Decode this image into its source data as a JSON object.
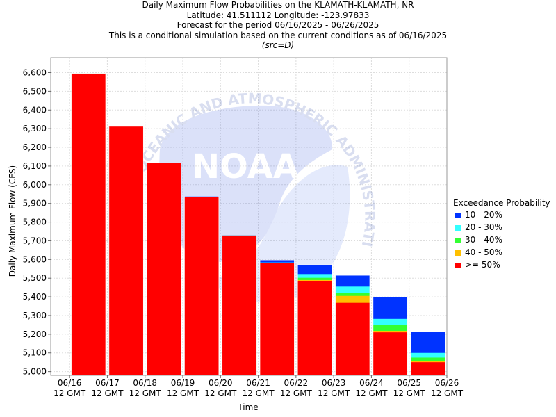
{
  "header": {
    "title": "Daily Maximum Flow Probabilities on the KLAMATH-KLAMATH, NR",
    "location": "Latitude: 41.511112 Longitude: -123.97833",
    "period": "Forecast for the period 06/16/2025 - 06/26/2025",
    "condition": "This is a conditional simulation based on the current conditions as of 06/16/2025",
    "source": "(src=D)"
  },
  "watermark": {
    "text": "NOAA",
    "arc_text": "OCEANIC AND ATMOSPHERIC ADMINISTRATION",
    "icon": "noaa-logo-watermark"
  },
  "legend": {
    "title": "Exceedance Probability",
    "items": [
      {
        "label": "10 - 20%",
        "color": "#0033ff"
      },
      {
        "label": "20 - 30%",
        "color": "#33ffff"
      },
      {
        "label": "30 - 40%",
        "color": "#33ff33"
      },
      {
        "label": "40 - 50%",
        "color": "#ffc000"
      },
      {
        "label": ">= 50%",
        "color": "#ff0000"
      }
    ]
  },
  "chart_data": {
    "type": "bar",
    "stacked": true,
    "xlabel": "Time",
    "ylabel": "Daily Maximum Flow (CFS)",
    "ylim": [
      4980,
      6680
    ],
    "yticks": [
      5000,
      5100,
      5200,
      5300,
      5400,
      5500,
      5600,
      5700,
      5800,
      5900,
      6000,
      6100,
      6200,
      6300,
      6400,
      6500,
      6600
    ],
    "ytick_labels": [
      "5,000",
      "5,100",
      "5,200",
      "5,300",
      "5,400",
      "5,500",
      "5,600",
      "5,700",
      "5,800",
      "5,900",
      "6,000",
      "6,100",
      "6,200",
      "6,300",
      "6,400",
      "6,500",
      "6,600"
    ],
    "xticks": [
      {
        "date": "06/16",
        "sub": "12 GMT"
      },
      {
        "date": "06/17",
        "sub": "12 GMT"
      },
      {
        "date": "06/18",
        "sub": "12 GMT"
      },
      {
        "date": "06/19",
        "sub": "12 GMT"
      },
      {
        "date": "06/20",
        "sub": "12 GMT"
      },
      {
        "date": "06/21",
        "sub": "12 GMT"
      },
      {
        "date": "06/22",
        "sub": "12 GMT"
      },
      {
        "date": "06/23",
        "sub": "12 GMT"
      },
      {
        "date": "06/24",
        "sub": "12 GMT"
      },
      {
        "date": "06/25",
        "sub": "12 GMT"
      },
      {
        "date": "06/26",
        "sub": "12 GMT"
      }
    ],
    "grid": true,
    "legend_position": "right",
    "bars": [
      {
        "x": "06/16",
        "levels": {
          ">= 50%": 6595,
          "40 - 50%": 6595,
          "30 - 40%": 6595,
          "20 - 30%": 6595,
          "10 - 20%": 6595
        }
      },
      {
        "x": "06/17",
        "levels": {
          ">= 50%": 6312,
          "40 - 50%": 6312,
          "30 - 40%": 6312,
          "20 - 30%": 6312,
          "10 - 20%": 6312
        }
      },
      {
        "x": "06/18",
        "levels": {
          ">= 50%": 6117,
          "40 - 50%": 6117,
          "30 - 40%": 6117,
          "20 - 30%": 6117,
          "10 - 20%": 6117
        }
      },
      {
        "x": "06/19",
        "levels": {
          ">= 50%": 5935,
          "40 - 50%": 5935,
          "30 - 40%": 5935,
          "20 - 30%": 5935,
          "10 - 20%": 5938
        }
      },
      {
        "x": "06/20",
        "levels": {
          ">= 50%": 5728,
          "40 - 50%": 5728,
          "30 - 40%": 5728,
          "20 - 30%": 5728,
          "10 - 20%": 5730
        }
      },
      {
        "x": "06/21",
        "levels": {
          ">= 50%": 5580,
          "40 - 50%": 5580,
          "30 - 40%": 5582,
          "20 - 30%": 5584,
          "10 - 20%": 5597
        }
      },
      {
        "x": "06/22",
        "levels": {
          ">= 50%": 5483,
          "40 - 50%": 5490,
          "30 - 40%": 5502,
          "20 - 30%": 5522,
          "10 - 20%": 5572
        }
      },
      {
        "x": "06/23",
        "levels": {
          ">= 50%": 5368,
          "40 - 50%": 5405,
          "30 - 40%": 5422,
          "20 - 30%": 5455,
          "10 - 20%": 5515
        }
      },
      {
        "x": "06/24",
        "levels": {
          ">= 50%": 5210,
          "40 - 50%": 5218,
          "30 - 40%": 5250,
          "20 - 30%": 5282,
          "10 - 20%": 5400
        }
      },
      {
        "x": "06/25",
        "levels": {
          ">= 50%": 5050,
          "40 - 50%": 5058,
          "30 - 40%": 5075,
          "20 - 30%": 5100,
          "10 - 20%": 5212
        }
      }
    ]
  }
}
